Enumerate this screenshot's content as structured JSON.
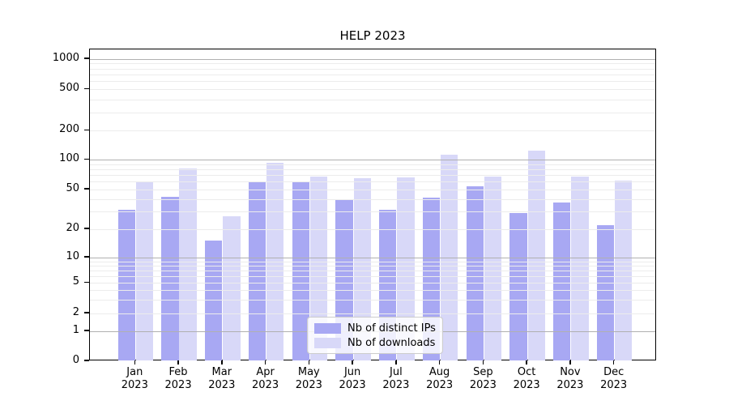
{
  "chart_data": {
    "type": "bar",
    "title": "HELP 2023",
    "year": "2023",
    "categories": [
      "Jan",
      "Feb",
      "Mar",
      "Apr",
      "May",
      "Jun",
      "Jul",
      "Aug",
      "Sep",
      "Oct",
      "Nov",
      "Dec"
    ],
    "series": [
      {
        "name": "Nb of distinct IPs",
        "color": "#a8a8f3",
        "values": [
          31,
          42,
          15,
          60,
          59,
          39,
          31,
          41,
          54,
          29,
          37,
          22
        ]
      },
      {
        "name": "Nb of downloads",
        "color": "#d8d8f8",
        "values": [
          60,
          82,
          27,
          94,
          68,
          65,
          66,
          113,
          67,
          124,
          68,
          61
        ]
      }
    ],
    "y_ticks": [
      1000,
      500,
      200,
      100,
      50,
      20,
      10,
      5,
      2,
      1,
      0
    ],
    "ylim": [
      0,
      1250
    ],
    "yscale": "log-with-zero",
    "grid": true,
    "legend_position": "bottom-center",
    "xlabel": "",
    "ylabel": ""
  }
}
